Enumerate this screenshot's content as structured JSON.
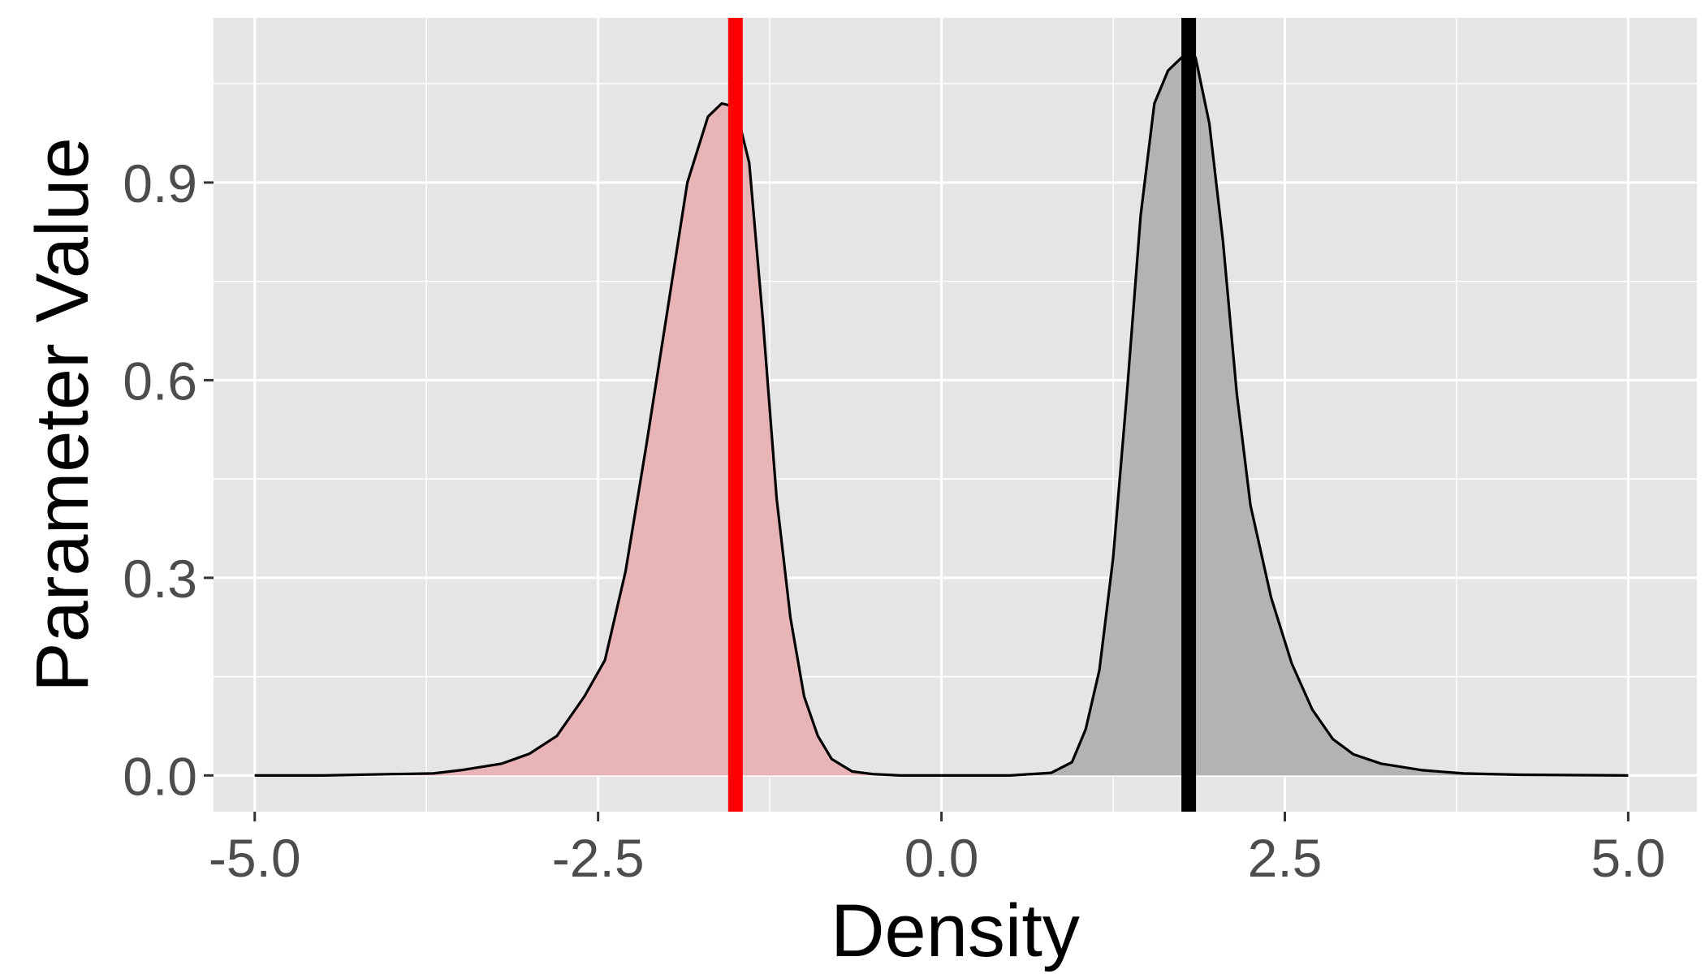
{
  "chart_data": {
    "type": "area",
    "title": "",
    "xlabel": "Density",
    "ylabel": "Parameter Value",
    "xlim": [
      -5.3,
      5.5
    ],
    "ylim": [
      -0.055,
      1.15
    ],
    "x_ticks": [
      -5.0,
      -2.5,
      0.0,
      2.5,
      5.0
    ],
    "x_tick_labels": [
      "-5.0",
      "-2.5",
      "0.0",
      "2.5",
      "5.0"
    ],
    "y_ticks": [
      0.0,
      0.3,
      0.6,
      0.9
    ],
    "y_tick_labels": [
      "0.0",
      "0.3",
      "0.6",
      "0.9"
    ],
    "grid": true,
    "legend": "none",
    "colors": {
      "panel": "#e5e5e5",
      "grid": "#ffffff",
      "series_a_fill": "#e8b4b5",
      "series_b_fill": "#b3b3b3",
      "curve_line": "#000000",
      "series_a_marker": "#ff0000",
      "series_b_marker": "#000000"
    },
    "series": [
      {
        "fill": "#e8b4b5",
        "vline": -1.5,
        "vline_color": "#ff0000",
        "x": [
          -5.0,
          -4.5,
          -4.0,
          -3.7,
          -3.5,
          -3.2,
          -3.0,
          -2.8,
          -2.6,
          -2.45,
          -2.3,
          -2.15,
          -2.0,
          -1.85,
          -1.7,
          -1.6,
          -1.5,
          -1.4,
          -1.3,
          -1.2,
          -1.1,
          -1.0,
          -0.9,
          -0.8,
          -0.65,
          -0.5,
          -0.3,
          0.0
        ],
        "y": [
          0.0,
          0.0,
          0.002,
          0.003,
          0.008,
          0.018,
          0.033,
          0.06,
          0.12,
          0.175,
          0.31,
          0.5,
          0.7,
          0.9,
          1.0,
          1.02,
          1.015,
          0.93,
          0.69,
          0.42,
          0.24,
          0.12,
          0.06,
          0.025,
          0.006,
          0.002,
          0.0,
          0.0
        ]
      },
      {
        "fill": "#b3b3b3",
        "vline": 1.8,
        "vline_color": "#000000",
        "x": [
          0.0,
          0.5,
          0.8,
          0.95,
          1.05,
          1.15,
          1.25,
          1.35,
          1.45,
          1.55,
          1.65,
          1.75,
          1.85,
          1.95,
          2.05,
          2.15,
          2.25,
          2.4,
          2.55,
          2.7,
          2.85,
          3.0,
          3.2,
          3.5,
          3.8,
          4.2,
          5.0
        ],
        "y": [
          0.0,
          0.0,
          0.004,
          0.02,
          0.07,
          0.16,
          0.33,
          0.58,
          0.85,
          1.02,
          1.07,
          1.09,
          1.09,
          0.99,
          0.81,
          0.58,
          0.41,
          0.27,
          0.17,
          0.1,
          0.055,
          0.032,
          0.018,
          0.008,
          0.003,
          0.001,
          0.0
        ]
      }
    ]
  }
}
